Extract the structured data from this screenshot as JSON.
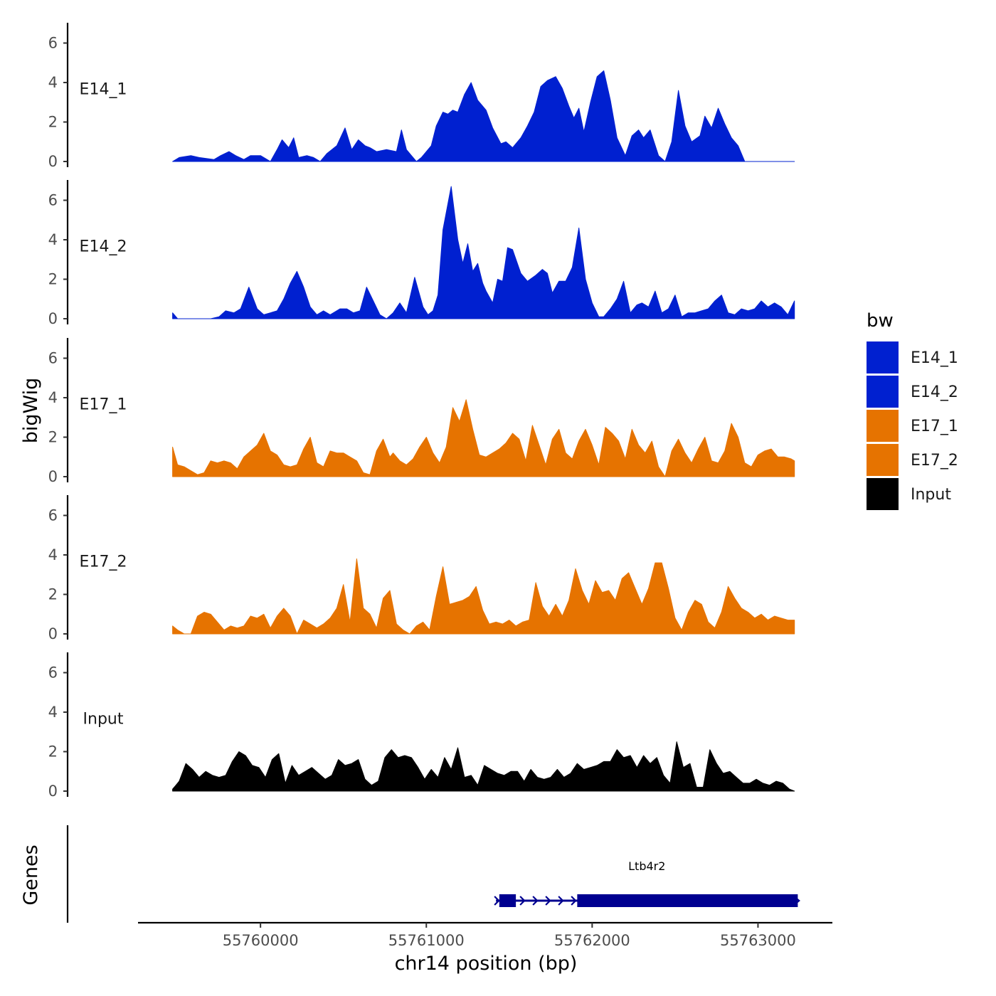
{
  "chart_data": {
    "type": "area",
    "ylabel": "bigWig",
    "xlabel": "chr14 position (bp)",
    "xlim": [
      55759270,
      55763440
    ],
    "x_ticks": [
      55760000,
      55761000,
      55762000,
      55763000
    ],
    "x_tick_labels": [
      "55760000",
      "55761000",
      "55762000",
      "55763000"
    ],
    "ylim": [
      0,
      7
    ],
    "y_ticks": [
      0,
      2,
      4,
      6
    ],
    "y_tick_labels": [
      "0",
      "2",
      "4",
      "6"
    ],
    "genes_label": "Genes",
    "legend": {
      "title": "bw",
      "position": "right",
      "entries": [
        {
          "label": "E14_1",
          "color": "#0020d0"
        },
        {
          "label": "E14_2",
          "color": "#0020d0"
        },
        {
          "label": "E17_1",
          "color": "#e67300"
        },
        {
          "label": "E17_2",
          "color": "#e67300"
        },
        {
          "label": "Input",
          "color": "#000000"
        }
      ]
    },
    "series": [
      {
        "name": "E14_1",
        "color": "#0020d0",
        "x": [
          55759470,
          55759510,
          55759580,
          55759630,
          55759720,
          55759760,
          55759810,
          55759850,
          55759900,
          55759940,
          55760000,
          55760020,
          55760060,
          55760100,
          55760130,
          55760170,
          55760200,
          55760230,
          55760280,
          55760320,
          55760360,
          55760400,
          55760460,
          55760510,
          55760550,
          55760590,
          55760630,
          55760660,
          55760700,
          55760760,
          55760820,
          55760850,
          55760880,
          55760910,
          55760940,
          55760970,
          55761030,
          55761060,
          55761100,
          55761130,
          55761160,
          55761190,
          55761230,
          55761270,
          55761310,
          55761360,
          55761400,
          55761450,
          55761480,
          55761520,
          55761570,
          55761610,
          55761650,
          55761690,
          55761730,
          55761780,
          55761820,
          55761860,
          55761890,
          55761920,
          55761950,
          55761990,
          55762030,
          55762070,
          55762110,
          55762150,
          55762200,
          55762240,
          55762280,
          55762310,
          55762350,
          55762400,
          55762440,
          55762480,
          55762520,
          55762560,
          55762600,
          55762650,
          55762680,
          55762720,
          55762760,
          55762800,
          55762840,
          55762880,
          55762920,
          55762960,
          55763000,
          55763040,
          55763080,
          55763130,
          55763220
        ],
        "values": [
          0,
          0.2,
          0.3,
          0.2,
          0.1,
          0.3,
          0.5,
          0.3,
          0.1,
          0.3,
          0.3,
          0.2,
          0,
          0.6,
          1.1,
          0.7,
          1.2,
          0.2,
          0.3,
          0.2,
          0,
          0.4,
          0.8,
          1.7,
          0.6,
          1.1,
          0.8,
          0.7,
          0.5,
          0.6,
          0.5,
          1.6,
          0.6,
          0.3,
          0,
          0.2,
          0.8,
          1.8,
          2.5,
          2.4,
          2.6,
          2.5,
          3.4,
          4,
          3.1,
          2.6,
          1.7,
          0.9,
          1,
          0.7,
          1.2,
          1.8,
          2.5,
          3.8,
          4.1,
          4.3,
          3.7,
          2.8,
          2.2,
          2.7,
          1.5,
          3,
          4.3,
          4.6,
          3.1,
          1.2,
          0.3,
          1.3,
          1.6,
          1.2,
          1.6,
          0.3,
          0,
          1,
          3.6,
          1.8,
          1,
          1.3,
          2.3,
          1.7,
          2.7,
          1.9,
          1.2,
          0.8,
          0,
          0,
          0,
          0,
          0,
          0,
          0
        ]
      },
      {
        "name": "E14_2",
        "color": "#0020d0",
        "x": [
          55759470,
          55759500,
          55759550,
          55759600,
          55759650,
          55759700,
          55759750,
          55759790,
          55759840,
          55759880,
          55759930,
          55759980,
          55760020,
          55760060,
          55760100,
          55760140,
          55760180,
          55760220,
          55760260,
          55760300,
          55760340,
          55760380,
          55760420,
          55760480,
          55760520,
          55760560,
          55760600,
          55760640,
          55760680,
          55760720,
          55760760,
          55760800,
          55760840,
          55760880,
          55760930,
          55760980,
          55761010,
          55761040,
          55761070,
          55761100,
          55761150,
          55761190,
          55761220,
          55761250,
          55761280,
          55761310,
          55761340,
          55761360,
          55761400,
          55761430,
          55761460,
          55761490,
          55761520,
          55761570,
          55761610,
          55761660,
          55761700,
          55761730,
          55761760,
          55761800,
          55761840,
          55761880,
          55761920,
          55761960,
          55762000,
          55762040,
          55762070,
          55762110,
          55762150,
          55762190,
          55762230,
          55762270,
          55762300,
          55762340,
          55762380,
          55762420,
          55762460,
          55762500,
          55762540,
          55762580,
          55762620,
          55762660,
          55762700,
          55762740,
          55762780,
          55762820,
          55762860,
          55762900,
          55762940,
          55762980,
          55763020,
          55763060,
          55763100,
          55763140,
          55763180,
          55763220
        ],
        "values": [
          0.3,
          0,
          0,
          0,
          0,
          0,
          0.1,
          0.4,
          0.3,
          0.5,
          1.6,
          0.5,
          0.2,
          0.3,
          0.4,
          1,
          1.8,
          2.4,
          1.6,
          0.6,
          0.2,
          0.4,
          0.2,
          0.5,
          0.5,
          0.3,
          0.4,
          1.6,
          0.9,
          0.2,
          0,
          0.3,
          0.8,
          0.3,
          2.1,
          0.6,
          0.2,
          0.4,
          1.2,
          4.5,
          6.7,
          4,
          2.8,
          3.8,
          2.4,
          2.8,
          1.8,
          1.4,
          0.8,
          2,
          1.9,
          3.6,
          3.5,
          2.3,
          1.9,
          2.2,
          2.5,
          2.3,
          1.3,
          1.9,
          1.9,
          2.6,
          4.6,
          2,
          0.8,
          0.1,
          0.1,
          0.5,
          1,
          1.9,
          0.3,
          0.7,
          0.8,
          0.6,
          1.4,
          0.3,
          0.5,
          1.2,
          0.1,
          0.3,
          0.3,
          0.4,
          0.5,
          0.9,
          1.2,
          0.3,
          0.2,
          0.5,
          0.4,
          0.5,
          0.9,
          0.6,
          0.8,
          0.6,
          0.2,
          0.9
        ]
      },
      {
        "name": "E17_1",
        "color": "#e67300",
        "x": [
          55759470,
          55759500,
          55759540,
          55759580,
          55759620,
          55759660,
          55759700,
          55759740,
          55759780,
          55759820,
          55759860,
          55759900,
          55759940,
          55759980,
          55760020,
          55760060,
          55760100,
          55760140,
          55760180,
          55760220,
          55760260,
          55760300,
          55760340,
          55760380,
          55760420,
          55760460,
          55760500,
          55760540,
          55760580,
          55760620,
          55760660,
          55760700,
          55760740,
          55760780,
          55760800,
          55760840,
          55760880,
          55760920,
          55760960,
          55761000,
          55761040,
          55761080,
          55761120,
          55761160,
          55761200,
          55761240,
          55761280,
          55761320,
          55761360,
          55761400,
          55761440,
          55761480,
          55761520,
          55761560,
          55761600,
          55761640,
          55761680,
          55761720,
          55761760,
          55761800,
          55761840,
          55761880,
          55761920,
          55761960,
          55762000,
          55762040,
          55762080,
          55762120,
          55762160,
          55762200,
          55762240,
          55762280,
          55762320,
          55762360,
          55762400,
          55762440,
          55762480,
          55762520,
          55762560,
          55762600,
          55762640,
          55762680,
          55762720,
          55762760,
          55762800,
          55762840,
          55762880,
          55762920,
          55762960,
          55763000,
          55763040,
          55763080,
          55763120,
          55763160,
          55763200,
          55763220
        ],
        "values": [
          1.5,
          0.6,
          0.5,
          0.3,
          0.1,
          0.2,
          0.8,
          0.7,
          0.8,
          0.7,
          0.4,
          1,
          1.3,
          1.6,
          2.2,
          1.3,
          1.1,
          0.6,
          0.5,
          0.6,
          1.4,
          2,
          0.7,
          0.5,
          1.3,
          1.2,
          1.2,
          1,
          0.8,
          0.2,
          0.1,
          1.3,
          1.9,
          1,
          1.2,
          0.8,
          0.6,
          0.9,
          1.5,
          2,
          1.2,
          0.7,
          1.5,
          3.5,
          2.8,
          3.9,
          2.4,
          1.1,
          1,
          1.2,
          1.4,
          1.7,
          2.2,
          1.9,
          0.8,
          2.6,
          1.6,
          0.6,
          1.9,
          2.4,
          1.2,
          0.9,
          1.8,
          2.4,
          1.6,
          0.6,
          2.5,
          2.2,
          1.8,
          0.9,
          2.4,
          1.6,
          1.2,
          1.8,
          0.5,
          0,
          1.3,
          1.9,
          1.2,
          0.7,
          1.4,
          2,
          0.8,
          0.7,
          1.3,
          2.7,
          2,
          0.7,
          0.5,
          1.1,
          1.3,
          1.4,
          1,
          1,
          0.9,
          0.8
        ]
      },
      {
        "name": "E17_2",
        "color": "#e67300",
        "x": [
          55759470,
          55759500,
          55759540,
          55759580,
          55759620,
          55759660,
          55759700,
          55759740,
          55759780,
          55759820,
          55759860,
          55759900,
          55759940,
          55759980,
          55760020,
          55760060,
          55760100,
          55760140,
          55760180,
          55760220,
          55760260,
          55760300,
          55760340,
          55760380,
          55760420,
          55760460,
          55760500,
          55760540,
          55760580,
          55760620,
          55760660,
          55760700,
          55760740,
          55760780,
          55760820,
          55760860,
          55760900,
          55760940,
          55760980,
          55761020,
          55761060,
          55761100,
          55761140,
          55761180,
          55761220,
          55761260,
          55761300,
          55761340,
          55761380,
          55761420,
          55761460,
          55761500,
          55761540,
          55761580,
          55761620,
          55761660,
          55761700,
          55761740,
          55761780,
          55761820,
          55761860,
          55761900,
          55761940,
          55761980,
          55762020,
          55762060,
          55762100,
          55762140,
          55762180,
          55762220,
          55762260,
          55762300,
          55762340,
          55762380,
          55762420,
          55762460,
          55762500,
          55762540,
          55762580,
          55762620,
          55762660,
          55762700,
          55762740,
          55762780,
          55762820,
          55762860,
          55762900,
          55762940,
          55762980,
          55763020,
          55763060,
          55763100,
          55763140,
          55763180,
          55763220
        ],
        "values": [
          0.4,
          0.2,
          0,
          0,
          0.9,
          1.1,
          1,
          0.6,
          0.2,
          0.4,
          0.3,
          0.4,
          0.9,
          0.8,
          1,
          0.3,
          0.9,
          1.3,
          0.9,
          0,
          0.7,
          0.5,
          0.3,
          0.5,
          0.8,
          1.3,
          2.5,
          0.6,
          3.8,
          1.3,
          1,
          0.3,
          1.8,
          2.2,
          0.5,
          0.2,
          0,
          0.4,
          0.6,
          0.2,
          1.9,
          3.4,
          1.5,
          1.6,
          1.7,
          1.9,
          2.4,
          1.2,
          0.5,
          0.6,
          0.5,
          0.7,
          0.4,
          0.6,
          0.7,
          2.6,
          1.4,
          0.9,
          1.5,
          0.9,
          1.7,
          3.3,
          2.2,
          1.5,
          2.7,
          2.1,
          2.2,
          1.7,
          2.8,
          3.1,
          2.3,
          1.5,
          2.3,
          3.6,
          3.6,
          2.3,
          0.8,
          0.2,
          1.1,
          1.7,
          1.5,
          0.6,
          0.3,
          1.1,
          2.4,
          1.8,
          1.3,
          1.1,
          0.8,
          1,
          0.7,
          0.9,
          0.8,
          0.7,
          0.7
        ]
      },
      {
        "name": "Input",
        "color": "#000000",
        "x": [
          55759470,
          55759490,
          55759510,
          55759550,
          55759590,
          55759630,
          55759670,
          55759710,
          55759750,
          55759790,
          55759830,
          55759870,
          55759910,
          55759950,
          55759990,
          55760030,
          55760070,
          55760110,
          55760150,
          55760190,
          55760230,
          55760270,
          55760310,
          55760350,
          55760390,
          55760430,
          55760470,
          55760510,
          55760550,
          55760590,
          55760630,
          55760670,
          55760710,
          55760750,
          55760790,
          55760830,
          55760870,
          55760910,
          55760950,
          55760990,
          55761030,
          55761070,
          55761110,
          55761150,
          55761190,
          55761230,
          55761270,
          55761310,
          55761350,
          55761390,
          55761430,
          55761470,
          55761510,
          55761550,
          55761590,
          55761630,
          55761670,
          55761710,
          55761750,
          55761790,
          55761830,
          55761870,
          55761910,
          55761950,
          55761990,
          55762030,
          55762070,
          55762110,
          55762150,
          55762190,
          55762230,
          55762270,
          55762310,
          55762350,
          55762390,
          55762430,
          55762470,
          55762510,
          55762550,
          55762590,
          55762630,
          55762670,
          55762710,
          55762750,
          55762790,
          55762830,
          55762870,
          55762910,
          55762950,
          55762990,
          55763030,
          55763070,
          55763110,
          55763150,
          55763190,
          55763220
        ],
        "values": [
          0.1,
          0.3,
          0.5,
          1.4,
          1.1,
          0.7,
          1,
          0.8,
          0.7,
          0.8,
          1.5,
          2,
          1.8,
          1.3,
          1.2,
          0.7,
          1.6,
          1.9,
          0.4,
          1.3,
          0.8,
          1,
          1.2,
          0.9,
          0.6,
          0.8,
          1.6,
          1.3,
          1.4,
          1.6,
          0.6,
          0.3,
          0.5,
          1.7,
          2.1,
          1.7,
          1.8,
          1.7,
          1.2,
          0.6,
          1.1,
          0.7,
          1.7,
          1.1,
          2.2,
          0.7,
          0.8,
          0.3,
          1.3,
          1.1,
          0.9,
          0.8,
          1,
          1,
          0.5,
          1.1,
          0.7,
          0.6,
          0.7,
          1.1,
          0.7,
          0.9,
          1.4,
          1.1,
          1.2,
          1.3,
          1.5,
          1.5,
          2.1,
          1.7,
          1.8,
          1.2,
          1.8,
          1.4,
          1.7,
          0.8,
          0.4,
          2.5,
          1.2,
          1.4,
          0.2,
          0.2,
          2.1,
          1.4,
          0.9,
          1,
          0.7,
          0.4,
          0.4,
          0.6,
          0.4,
          0.3,
          0.5,
          0.4,
          0.1,
          0
        ]
      }
    ],
    "gene_track": {
      "gene_name": "Ltb4r2",
      "color": "#000090",
      "strand": "+",
      "start": 55761420,
      "end": 55763240,
      "exons": [
        [
          55761440,
          55761540
        ],
        [
          55761910,
          55763240
        ]
      ]
    }
  }
}
